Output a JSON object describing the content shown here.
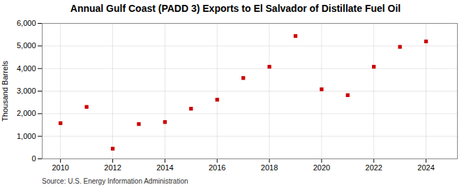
{
  "chart_data": {
    "type": "scatter",
    "title": "Annual Gulf Coast (PADD 3) Exports to El Salvador of Distillate Fuel Oil",
    "ylabel": "Thousand Barrels",
    "annotation": "Source: U.S. Energy Information Administration",
    "x": [
      2010,
      2011,
      2012,
      2013,
      2014,
      2015,
      2016,
      2017,
      2018,
      2019,
      2020,
      2021,
      2022,
      2023,
      2024
    ],
    "values": [
      1580,
      2300,
      450,
      1540,
      1630,
      2220,
      2620,
      3580,
      4080,
      5440,
      3080,
      2820,
      4080,
      4960,
      5200
    ],
    "color": "#cc0000",
    "marker": "square",
    "xlim": [
      2009.3,
      2025.2
    ],
    "xticks": [
      2010,
      2012,
      2014,
      2016,
      2018,
      2020,
      2022,
      2024
    ],
    "ylim": [
      0,
      6000
    ],
    "yticks": [
      0,
      {
        "value": 1000,
        "label": "1,000"
      },
      {
        "value": 2000,
        "label": "2,000"
      },
      {
        "value": 3000,
        "label": "3,000"
      },
      {
        "value": 4000,
        "label": "4,000"
      },
      {
        "value": 5000,
        "label": "5,000"
      },
      {
        "value": 6000,
        "label": "6,000"
      }
    ],
    "grid": true
  }
}
